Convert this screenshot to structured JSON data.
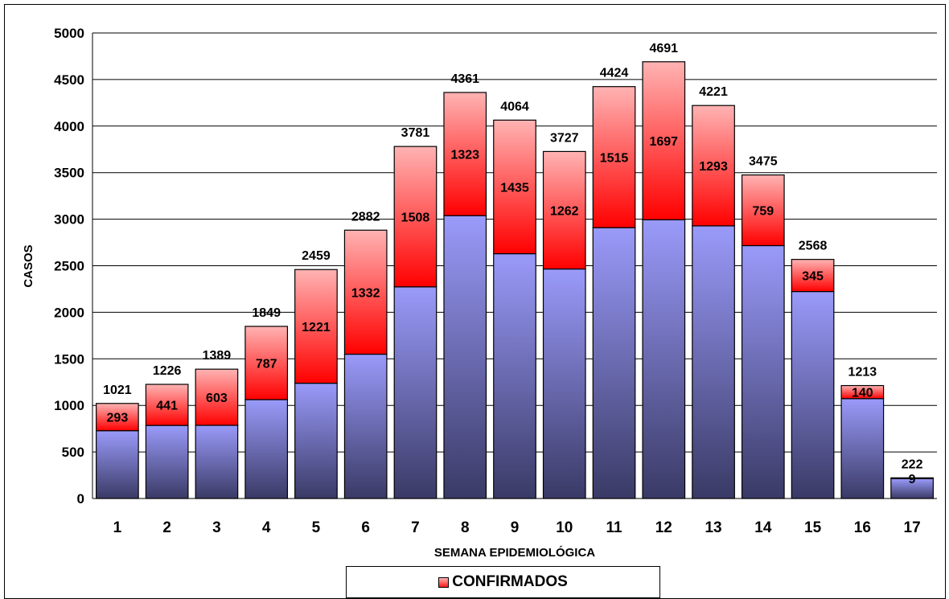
{
  "chart_data": {
    "type": "bar",
    "stacked": true,
    "categories": [
      "1",
      "2",
      "3",
      "4",
      "5",
      "6",
      "7",
      "8",
      "9",
      "10",
      "11",
      "12",
      "13",
      "14",
      "15",
      "16",
      "17"
    ],
    "totals": [
      1021,
      1226,
      1389,
      1849,
      2459,
      2882,
      3781,
      4361,
      4064,
      3727,
      4424,
      4691,
      4221,
      3475,
      2568,
      1213,
      222
    ],
    "series": [
      {
        "name": "",
        "color_top": "#9a9afa",
        "color_bottom": "#3a3a66",
        "values": [
          728,
          785,
          786,
          1062,
          1238,
          1550,
          2273,
          3038,
          2629,
          2465,
          2909,
          2994,
          2928,
          2716,
          2223,
          1073,
          213
        ]
      },
      {
        "name": "CONFIRMADOS",
        "color_top": "#ffb3b3",
        "color_bottom": "#ff0000",
        "values": [
          293,
          441,
          603,
          787,
          1221,
          1332,
          1508,
          1323,
          1435,
          1262,
          1515,
          1697,
          1293,
          759,
          345,
          140,
          9
        ]
      }
    ],
    "xlabel": "SEMANA EPIDEMIOLÓGICA",
    "ylabel": "CASOS",
    "ylim": [
      0,
      5000
    ],
    "yticks": [
      0,
      500,
      1000,
      1500,
      2000,
      2500,
      3000,
      3500,
      4000,
      4500,
      5000
    ],
    "grid": true,
    "legend": {
      "position": "bottom",
      "items": [
        "CONFIRMADOS"
      ]
    }
  }
}
